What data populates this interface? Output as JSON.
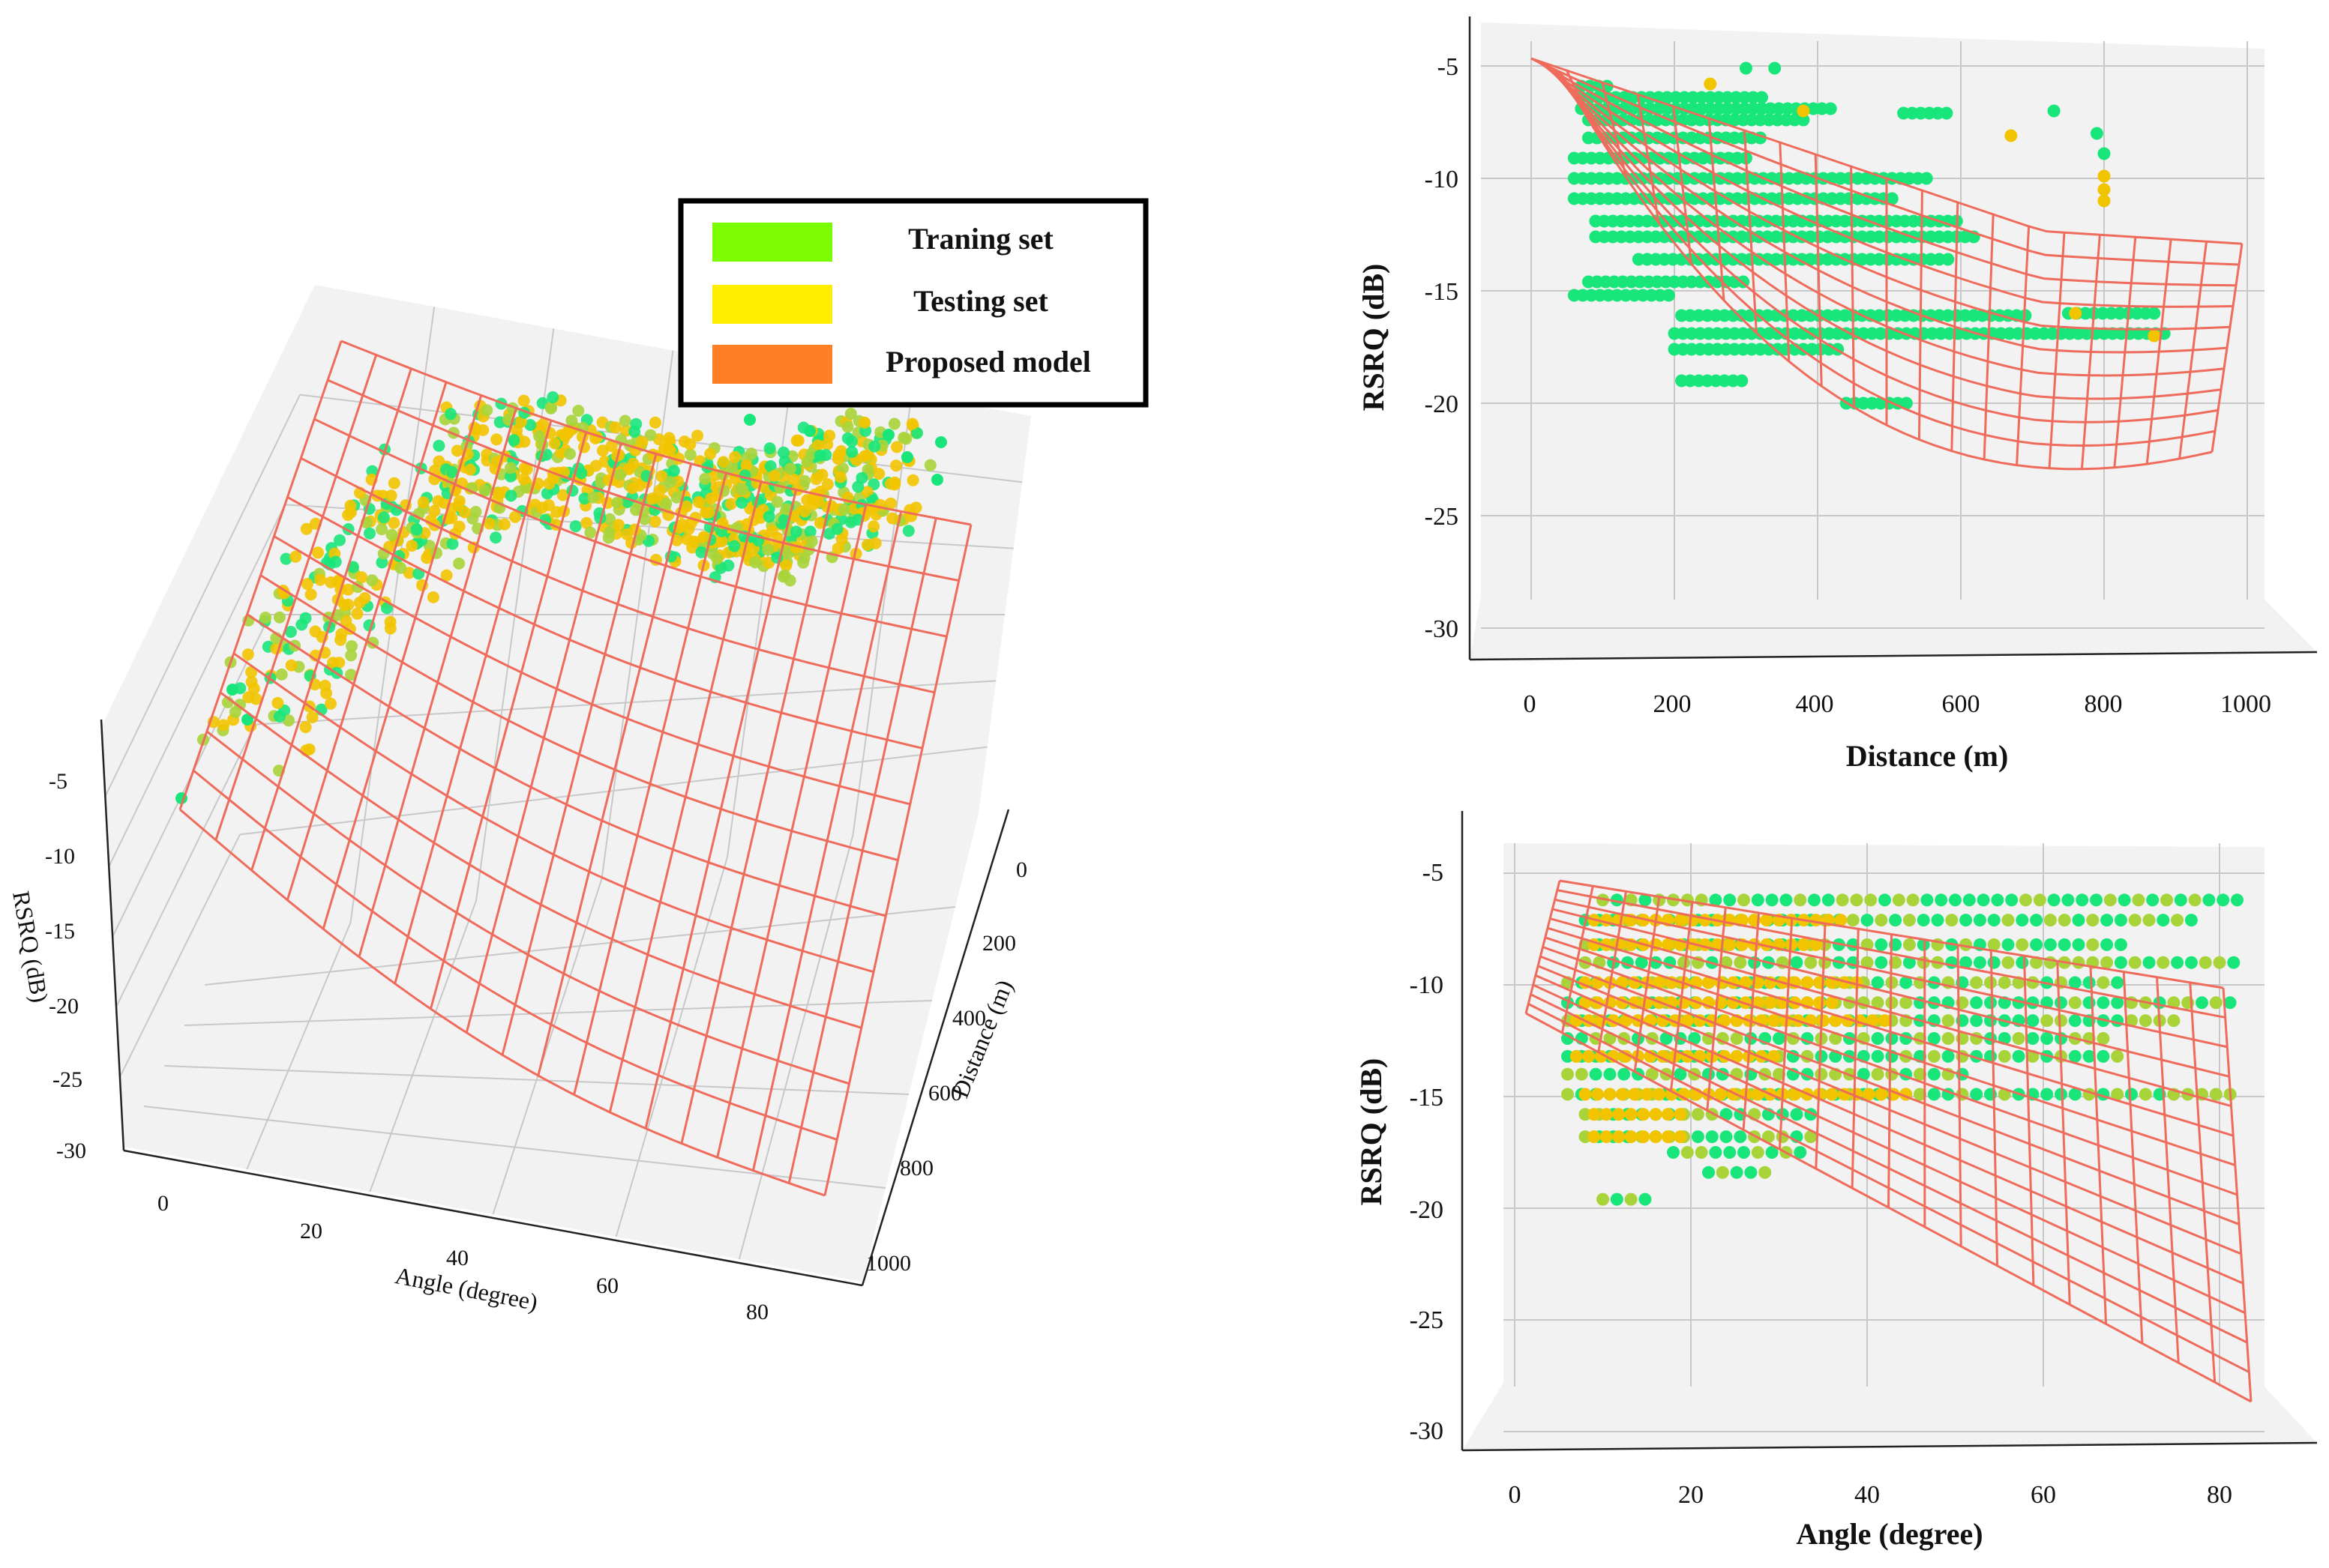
{
  "legend": {
    "items": [
      {
        "label": "Traning set",
        "color": "#7cfc00"
      },
      {
        "label": "Testing set",
        "color": "#ffee00"
      },
      {
        "label": "Proposed model",
        "color": "#ff7f27"
      }
    ]
  },
  "colors": {
    "training_point": "#19e67a",
    "testing_point": "#f2c400",
    "mixed_point": "#a8d43a",
    "mesh": "#ef6b5b"
  },
  "chart_data": [
    {
      "type": "scatter",
      "view": "3d",
      "title": "",
      "xlabel": "Angle (degree)",
      "ylabel": "Distance (m)",
      "zlabel": "RSRQ (dB)",
      "x_ticks": [
        "0",
        "20",
        "40",
        "60",
        "80"
      ],
      "y_ticks": [
        "0",
        "200",
        "400",
        "600",
        "800",
        "1000"
      ],
      "z_ticks": [
        "-5",
        "-10",
        "-15",
        "-20",
        "-25",
        "-30"
      ],
      "xlim": [
        0,
        85
      ],
      "ylim": [
        0,
        1000
      ],
      "zlim": [
        -30,
        -5
      ],
      "series": [
        {
          "name": "Traning set",
          "kind": "points"
        },
        {
          "name": "Testing set",
          "kind": "points"
        },
        {
          "name": "Proposed model",
          "kind": "surface-wireframe"
        }
      ]
    },
    {
      "type": "scatter",
      "view": "side-distance",
      "xlabel": "Distance (m)",
      "ylabel": "RSRQ (dB)",
      "x_ticks": [
        "0",
        "200",
        "400",
        "600",
        "800",
        "1000"
      ],
      "y_ticks": [
        "-5",
        "-10",
        "-15",
        "-20",
        "-25",
        "-30"
      ],
      "xlim": [
        0,
        1000
      ],
      "ylim": [
        -30,
        -5
      ],
      "series": [
        {
          "name": "Traning set",
          "rows": [
            {
              "y": -5.9,
              "x0": 70,
              "x1": 110
            },
            {
              "y": -6.4,
              "x0": 70,
              "x1": 330
            },
            {
              "y": -6.9,
              "x0": 70,
              "x1": 420
            },
            {
              "y": -7.4,
              "x0": 80,
              "x1": 390
            },
            {
              "y": -8.2,
              "x0": 80,
              "x1": 320
            },
            {
              "y": -9.1,
              "x0": 60,
              "x1": 300
            },
            {
              "y": -10.0,
              "x0": 60,
              "x1": 560
            },
            {
              "y": -10.9,
              "x0": 60,
              "x1": 510
            },
            {
              "y": -11.9,
              "x0": 90,
              "x1": 600
            },
            {
              "y": -12.6,
              "x0": 90,
              "x1": 620
            },
            {
              "y": -13.6,
              "x0": 150,
              "x1": 590
            },
            {
              "y": -14.6,
              "x0": 80,
              "x1": 300
            },
            {
              "y": -15.2,
              "x0": 60,
              "x1": 200
            },
            {
              "y": -16.1,
              "x0": 210,
              "x1": 700
            },
            {
              "y": -16.9,
              "x0": 200,
              "x1": 890
            },
            {
              "y": -17.6,
              "x0": 200,
              "x1": 430
            },
            {
              "y": -19.0,
              "x0": 210,
              "x1": 300
            },
            {
              "y": -20.0,
              "x0": 440,
              "x1": 530
            },
            {
              "y": -16.0,
              "x0": 750,
              "x1": 880
            },
            {
              "y": -7.1,
              "x0": 520,
              "x1": 590
            }
          ],
          "extra": [
            [
              300,
              -5.1
            ],
            [
              340,
              -5.1
            ],
            [
              730,
              -7.0
            ],
            [
              790,
              -8.0
            ],
            [
              800,
              -8.9
            ]
          ]
        },
        {
          "name": "Testing set",
          "extra": [
            [
              380,
              -7.0
            ],
            [
              250,
              -5.8
            ],
            [
              670,
              -8.1
            ],
            [
              800,
              -9.9
            ],
            [
              800,
              -10.5
            ],
            [
              800,
              -11.0
            ],
            [
              760,
              -16.0
            ],
            [
              870,
              -17.0
            ]
          ]
        },
        {
          "name": "Proposed model",
          "kind": "surface-wireframe"
        }
      ]
    },
    {
      "type": "scatter",
      "view": "side-angle",
      "xlabel": "Angle (degree)",
      "ylabel": "RSRQ (dB)",
      "x_ticks": [
        "0",
        "20",
        "40",
        "60",
        "80"
      ],
      "y_ticks": [
        "-5",
        "-10",
        "-15",
        "-20",
        "-25",
        "-30"
      ],
      "xlim": [
        0,
        85
      ],
      "ylim": [
        -30,
        -5
      ],
      "series": [
        {
          "name": "Traning set",
          "rows": [
            {
              "y": -6.2,
              "x0": 10,
              "x1": 82
            },
            {
              "y": -7.1,
              "x0": 8,
              "x1": 78
            },
            {
              "y": -8.2,
              "x0": 8,
              "x1": 70
            },
            {
              "y": -9.0,
              "x0": 8,
              "x1": 82
            },
            {
              "y": -9.9,
              "x0": 6,
              "x1": 70
            },
            {
              "y": -10.8,
              "x0": 6,
              "x1": 82
            },
            {
              "y": -11.6,
              "x0": 6,
              "x1": 75
            },
            {
              "y": -12.4,
              "x0": 6,
              "x1": 68
            },
            {
              "y": -13.2,
              "x0": 6,
              "x1": 70
            },
            {
              "y": -14.0,
              "x0": 6,
              "x1": 52
            },
            {
              "y": -14.9,
              "x0": 6,
              "x1": 82
            },
            {
              "y": -15.8,
              "x0": 8,
              "x1": 35
            },
            {
              "y": -16.8,
              "x0": 8,
              "x1": 35
            },
            {
              "y": -17.5,
              "x0": 18,
              "x1": 34
            },
            {
              "y": -18.4,
              "x0": 22,
              "x1": 30
            },
            {
              "y": -19.6,
              "x0": 10,
              "x1": 16
            }
          ]
        },
        {
          "name": "Testing set",
          "rows": [
            {
              "y": -7.1,
              "x0": 9,
              "x1": 38
            },
            {
              "y": -8.2,
              "x0": 9,
              "x1": 35
            },
            {
              "y": -9.9,
              "x0": 8,
              "x1": 40
            },
            {
              "y": -10.8,
              "x0": 8,
              "x1": 36
            },
            {
              "y": -11.6,
              "x0": 7,
              "x1": 42
            },
            {
              "y": -13.2,
              "x0": 7,
              "x1": 30
            },
            {
              "y": -14.9,
              "x0": 8,
              "x1": 45
            },
            {
              "y": -15.8,
              "x0": 9,
              "x1": 20
            },
            {
              "y": -16.8,
              "x0": 9,
              "x1": 20
            }
          ]
        },
        {
          "name": "Proposed model",
          "kind": "surface-wireframe"
        }
      ]
    }
  ]
}
